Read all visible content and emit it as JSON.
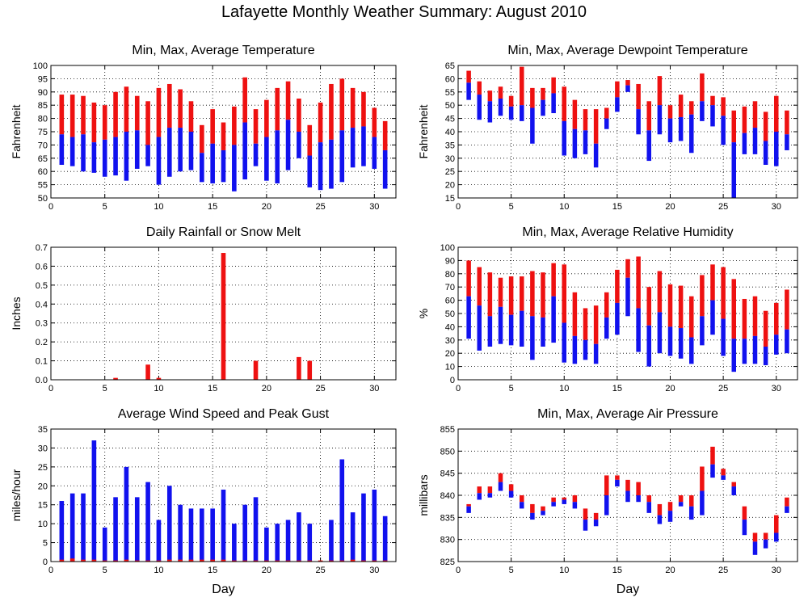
{
  "page": {
    "title": "Lafayette Monthly Weather Summary: August 2010"
  },
  "colors": {
    "upper": "#ee1111",
    "lower": "#1111ee",
    "grid": "#000000"
  },
  "chart_data": [
    {
      "id": "temperature",
      "type": "bar",
      "title": "Min, Max, Average Temperature",
      "xlabel": "",
      "ylabel": "Fahrenheit",
      "xlim": [
        0,
        32
      ],
      "ylim": [
        50,
        100
      ],
      "xticks": [
        0,
        5,
        10,
        15,
        20,
        25,
        30
      ],
      "yticks": [
        50,
        55,
        60,
        65,
        70,
        75,
        80,
        85,
        90,
        95,
        100
      ],
      "days": [
        1,
        2,
        3,
        4,
        5,
        6,
        7,
        8,
        9,
        10,
        11,
        12,
        13,
        14,
        15,
        16,
        17,
        18,
        19,
        20,
        21,
        22,
        23,
        24,
        25,
        26,
        27,
        28,
        29,
        30,
        31
      ],
      "min": [
        62.5,
        62,
        60,
        59.5,
        58,
        58.5,
        56.5,
        61,
        62,
        55,
        58,
        60,
        60.5,
        56,
        55.5,
        56,
        52.5,
        57,
        62,
        56.5,
        55.5,
        60.5,
        65,
        54,
        53,
        53.5,
        56,
        61.5,
        62,
        61,
        53.5
      ],
      "avg": [
        74,
        73,
        74,
        71,
        72,
        73,
        75,
        75.5,
        70,
        73,
        76.5,
        76.5,
        75,
        67,
        70.5,
        68,
        70,
        78.5,
        70.5,
        73,
        75.5,
        79.5,
        75,
        66,
        71,
        72,
        75.5,
        76.5,
        77,
        73,
        68
      ],
      "max": [
        89,
        89,
        88.5,
        86,
        85,
        90,
        92,
        88.5,
        86.5,
        91.5,
        93,
        91,
        86.5,
        77.5,
        83.5,
        78.5,
        84.5,
        95.5,
        83.5,
        87,
        91.5,
        94,
        87.5,
        77.5,
        86,
        93,
        95,
        91.5,
        90,
        84,
        79
      ]
    },
    {
      "id": "dewpoint",
      "type": "bar",
      "title": "Min, Max, Average Dewpoint Temperature",
      "xlabel": "",
      "ylabel": "Fahrenheit",
      "xlim": [
        0,
        32
      ],
      "ylim": [
        15,
        65
      ],
      "xticks": [
        0,
        5,
        10,
        15,
        20,
        25,
        30
      ],
      "yticks": [
        15,
        20,
        25,
        30,
        35,
        40,
        45,
        50,
        55,
        60,
        65
      ],
      "days": [
        1,
        2,
        3,
        4,
        5,
        6,
        7,
        8,
        9,
        10,
        11,
        12,
        13,
        14,
        15,
        16,
        17,
        18,
        19,
        20,
        21,
        22,
        23,
        24,
        25,
        26,
        27,
        28,
        29,
        30,
        31
      ],
      "min": [
        52,
        44.5,
        43.5,
        46,
        44.5,
        44,
        35.5,
        46,
        47,
        31,
        30,
        31.5,
        26.5,
        41,
        47.5,
        55,
        39,
        29,
        39,
        36,
        36.5,
        32,
        44,
        42,
        35,
        15,
        31.5,
        31.5,
        27.5,
        27,
        33
      ],
      "avg": [
        58.5,
        54,
        51.5,
        52.5,
        49.5,
        50,
        49,
        52,
        54.5,
        44,
        41,
        40.5,
        35.5,
        45,
        53,
        57.5,
        48.5,
        40.5,
        50,
        45,
        45.5,
        46.5,
        51.5,
        50,
        46,
        36,
        39.5,
        41.5,
        36.5,
        40,
        39
      ],
      "max": [
        63,
        59,
        55.5,
        57,
        53.5,
        64.5,
        56.5,
        56.5,
        60.5,
        57,
        52,
        48.5,
        48.5,
        49,
        59,
        59.5,
        58,
        51.5,
        61,
        50,
        54,
        51.5,
        62,
        53.5,
        53,
        48,
        49.5,
        51.5,
        47.5,
        53.5,
        48
      ]
    },
    {
      "id": "rainfall",
      "type": "bar",
      "title": "Daily Rainfall or Snow Melt",
      "xlabel": "",
      "ylabel": "Inches",
      "xlim": [
        0,
        32
      ],
      "ylim": [
        0,
        0.7
      ],
      "xticks": [
        0,
        5,
        10,
        15,
        20,
        25,
        30
      ],
      "yticks": [
        0.0,
        0.1,
        0.2,
        0.3,
        0.4,
        0.5,
        0.6,
        0.7
      ],
      "ytick_labels": [
        "0.0",
        "0.1",
        "0.2",
        "0.3",
        "0.4",
        "0.5",
        "0.6",
        "0.7"
      ],
      "days": [
        6,
        9,
        10,
        16,
        19,
        23,
        24
      ],
      "values": [
        0.01,
        0.08,
        0.01,
        0.67,
        0.1,
        0.12,
        0.1
      ]
    },
    {
      "id": "humidity",
      "type": "bar",
      "title": "Min, Max, Average Relative Humidity",
      "xlabel": "",
      "ylabel": "%",
      "xlim": [
        0,
        32
      ],
      "ylim": [
        0,
        100
      ],
      "xticks": [
        0,
        5,
        10,
        15,
        20,
        25,
        30
      ],
      "yticks": [
        0,
        10,
        20,
        30,
        40,
        50,
        60,
        70,
        80,
        90,
        100
      ],
      "days": [
        1,
        2,
        3,
        4,
        5,
        6,
        7,
        8,
        9,
        10,
        11,
        12,
        13,
        14,
        15,
        16,
        17,
        18,
        19,
        20,
        21,
        22,
        23,
        24,
        25,
        26,
        27,
        28,
        29,
        30,
        31
      ],
      "min": [
        31,
        22,
        25,
        27,
        26,
        25,
        15,
        25,
        28,
        13,
        12,
        15,
        12,
        31,
        34,
        48,
        21,
        10,
        20,
        18,
        16,
        12,
        26,
        34,
        18,
        6,
        12,
        12,
        11,
        19,
        20
      ],
      "avg": [
        63,
        56,
        48,
        55,
        49,
        52,
        48,
        47,
        63,
        43,
        33,
        30,
        27,
        47,
        58,
        77,
        54,
        41,
        51,
        40,
        39,
        32,
        48,
        60,
        46,
        31,
        31,
        33,
        25,
        34,
        38
      ],
      "max": [
        90,
        85,
        81,
        77,
        78,
        78,
        82,
        81,
        88,
        87,
        66,
        54,
        56,
        66,
        83,
        91,
        93,
        70,
        82,
        72,
        71,
        63,
        79,
        87,
        85,
        76,
        61,
        63,
        52,
        58,
        68
      ]
    },
    {
      "id": "wind",
      "type": "bar",
      "title": "Average Wind Speed and Peak Gust",
      "xlabel": "Day",
      "ylabel": "miles/hour",
      "xlim": [
        0,
        32
      ],
      "ylim": [
        0,
        35
      ],
      "xticks": [
        0,
        5,
        10,
        15,
        20,
        25,
        30
      ],
      "yticks": [
        0,
        5,
        10,
        15,
        20,
        25,
        30,
        35
      ],
      "days": [
        1,
        2,
        3,
        4,
        5,
        6,
        7,
        8,
        9,
        10,
        11,
        12,
        13,
        14,
        15,
        16,
        17,
        18,
        19,
        20,
        21,
        22,
        23,
        24,
        25,
        26,
        27,
        28,
        29,
        30,
        31
      ],
      "average": [
        0.5,
        0.8,
        0.5,
        0.5,
        0.3,
        0.3,
        0.5,
        0.3,
        0.3,
        0.3,
        0.5,
        0.5,
        0.5,
        0.5,
        0.5,
        0.5,
        0.3,
        0.3,
        0.3,
        0.3,
        0.3,
        0.3,
        0.3,
        0.3,
        0.3,
        0.3,
        0.3,
        0.5,
        0.3,
        0.3,
        0.3
      ],
      "gust": [
        16,
        18,
        18,
        32,
        9,
        17,
        25,
        17,
        21,
        11,
        20,
        15,
        14,
        14,
        14,
        19,
        10,
        15,
        17,
        9,
        10,
        11,
        13,
        10,
        null,
        11,
        27,
        13,
        18,
        19,
        12
      ]
    },
    {
      "id": "pressure",
      "type": "bar",
      "title": "Min, Max, Average Air Pressure",
      "xlabel": "Day",
      "ylabel": "millibars",
      "xlim": [
        0,
        32
      ],
      "ylim": [
        825,
        855
      ],
      "xticks": [
        0,
        5,
        10,
        15,
        20,
        25,
        30
      ],
      "yticks": [
        825,
        830,
        835,
        840,
        845,
        850,
        855
      ],
      "days": [
        1,
        2,
        3,
        4,
        5,
        6,
        7,
        8,
        9,
        10,
        11,
        12,
        13,
        14,
        15,
        16,
        17,
        18,
        19,
        20,
        21,
        22,
        23,
        24,
        25,
        26,
        27,
        28,
        29,
        30,
        31
      ],
      "min": [
        836,
        839,
        839.5,
        841,
        839.5,
        837,
        834.5,
        835.5,
        837.5,
        838,
        837,
        832,
        833,
        835.5,
        842,
        838.5,
        838.5,
        836,
        833.5,
        834,
        837.5,
        834.5,
        835.5,
        844,
        843.5,
        840,
        831,
        826.5,
        828,
        829.5,
        836
      ],
      "avg": [
        837.5,
        840.5,
        840.5,
        843,
        841,
        838.5,
        836,
        836.5,
        838.5,
        839,
        838.5,
        834.5,
        834.5,
        840,
        843.5,
        841,
        840,
        838.5,
        835.5,
        836.5,
        838.5,
        837.5,
        841,
        847,
        844.5,
        842,
        834.5,
        829.5,
        830,
        831.5,
        837.5
      ],
      "max": [
        838,
        842,
        842,
        845,
        842.5,
        840,
        838,
        837.5,
        839.5,
        839.5,
        840,
        837,
        836,
        844.5,
        844.5,
        843.5,
        843,
        840,
        838,
        838.5,
        840,
        840,
        846.5,
        851,
        846,
        843,
        837.5,
        831.5,
        831.5,
        835.5,
        839.5
      ]
    }
  ]
}
